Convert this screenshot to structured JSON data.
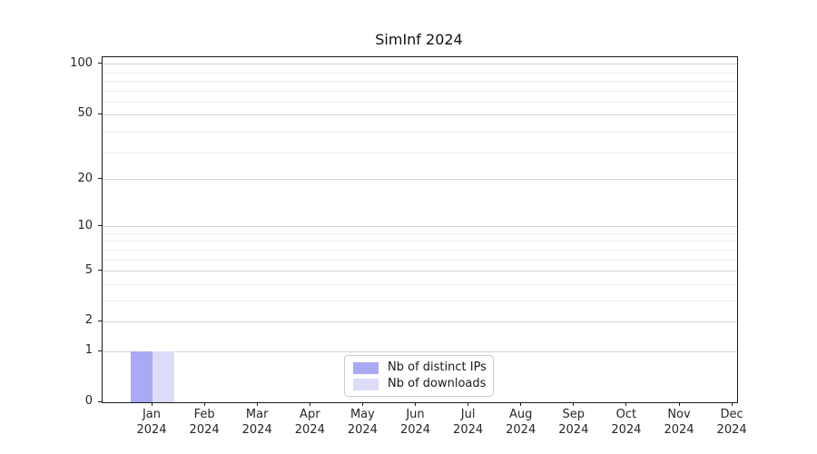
{
  "title": "SimInf 2024",
  "legend": {
    "items": [
      {
        "label": "Nb of distinct IPs",
        "color": "#a9a9f5"
      },
      {
        "label": "Nb of downloads",
        "color": "#dcdcf8"
      }
    ]
  },
  "chart_data": {
    "type": "bar",
    "title": "SimInf 2024",
    "categories": [
      "Jan\n2024",
      "Feb\n2024",
      "Mar\n2024",
      "Apr\n2024",
      "May\n2024",
      "Jun\n2024",
      "Jul\n2024",
      "Aug\n2024",
      "Sep\n2024",
      "Oct\n2024",
      "Nov\n2024",
      "Dec\n2024"
    ],
    "series": [
      {
        "name": "Nb of distinct IPs",
        "color": "#a9a9f5",
        "values": [
          1,
          0,
          0,
          0,
          0,
          0,
          0,
          0,
          0,
          0,
          0,
          0
        ]
      },
      {
        "name": "Nb of downloads",
        "color": "#dcdcf8",
        "values": [
          1,
          0,
          0,
          0,
          0,
          0,
          0,
          0,
          0,
          0,
          0,
          0
        ]
      }
    ],
    "y_scale": "log10(1+v)",
    "y_ticks": [
      0,
      1,
      2,
      5,
      10,
      20,
      50,
      100
    ],
    "y_minor_ticks": [
      3,
      4,
      6,
      7,
      8,
      9,
      29,
      39,
      59,
      69,
      79,
      89
    ],
    "ylim": [
      0,
      101
    ],
    "grid": "horizontal",
    "legend_position": "lower center",
    "colors": {
      "grid_major": "#d4d4d4",
      "grid_minor": "#ededed",
      "spine": "#1a1a1a",
      "text": "#262626"
    }
  }
}
